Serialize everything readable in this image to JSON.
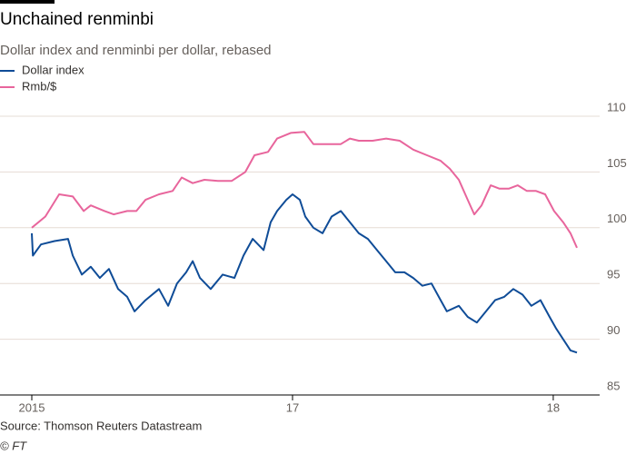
{
  "chart_data": {
    "type": "line",
    "title": "Unchained renminbi",
    "subtitle": "Dollar index and renminbi per dollar, rebased",
    "source": "Source: Thomson Reuters Datastream",
    "credit": "© FT",
    "xlim": [
      2015.878,
      2018.178
    ],
    "ylim": [
      85,
      110
    ],
    "yticks": [
      85,
      90,
      95,
      100,
      105,
      110
    ],
    "xticks": [
      {
        "value": 2016,
        "label": "2015"
      },
      {
        "value": 2017,
        "label": "17"
      },
      {
        "value": 2018,
        "label": "18"
      }
    ],
    "grid": true,
    "legend": "top-left",
    "series": [
      {
        "name": "Dollar index",
        "color": "#0f4c97",
        "x": [
          2016,
          2016.004,
          2016.035,
          2016.087,
          2016.139,
          2016.157,
          2016.192,
          2016.226,
          2016.261,
          2016.296,
          2016.331,
          2016.366,
          2016.394,
          2016.436,
          2016.488,
          2016.523,
          2016.557,
          2016.592,
          2016.617,
          2016.645,
          2016.686,
          2016.732,
          2016.777,
          2016.812,
          2016.847,
          2016.889,
          2016.916,
          2016.941,
          2016.976,
          2017.0,
          2017.028,
          2017.049,
          2017.08,
          2017.115,
          2017.15,
          2017.185,
          2017.22,
          2017.254,
          2017.289,
          2017.324,
          2017.359,
          2017.394,
          2017.429,
          2017.463,
          2017.498,
          2017.533,
          2017.568,
          2017.592,
          2017.638,
          2017.672,
          2017.707,
          2017.742,
          2017.777,
          2017.812,
          2017.847,
          2017.882,
          2017.916,
          2017.951,
          2017.986,
          2018.01,
          2018.038,
          2018.066,
          2018.091
        ],
        "values": [
          99.5,
          97.5,
          98.5,
          98.8,
          99,
          97.5,
          95.8,
          96.5,
          95.5,
          96.3,
          94.5,
          93.8,
          92.5,
          93.5,
          94.5,
          93,
          95,
          96,
          97,
          95.5,
          94.5,
          95.8,
          95.5,
          97.5,
          99,
          98,
          100.5,
          101.5,
          102.5,
          103,
          102.5,
          101,
          100,
          99.5,
          101,
          101.5,
          100.5,
          99.5,
          99,
          98,
          97,
          96,
          96,
          95.5,
          94.8,
          95,
          93.5,
          92.5,
          93,
          92,
          91.5,
          92.5,
          93.5,
          93.8,
          94.5,
          94,
          93,
          93.5,
          92,
          91,
          90,
          89,
          88.8
        ]
      },
      {
        "name": "Rmb/$",
        "color": "#e8659c",
        "x": [
          2016,
          2016.052,
          2016.105,
          2016.157,
          2016.199,
          2016.226,
          2016.279,
          2016.314,
          2016.366,
          2016.401,
          2016.436,
          2016.488,
          2016.54,
          2016.575,
          2016.617,
          2016.662,
          2016.714,
          2016.767,
          2016.819,
          2016.854,
          2016.906,
          2016.941,
          2016.993,
          2017.045,
          2017.08,
          2017.132,
          2017.185,
          2017.22,
          2017.254,
          2017.307,
          2017.359,
          2017.411,
          2017.463,
          2017.516,
          2017.568,
          2017.603,
          2017.638,
          2017.672,
          2017.697,
          2017.725,
          2017.76,
          2017.794,
          2017.829,
          2017.864,
          2017.899,
          2017.934,
          2017.969,
          2018.003,
          2018.038,
          2018.066,
          2018.091
        ],
        "values": [
          100,
          101,
          103,
          102.8,
          101.5,
          102,
          101.5,
          101.2,
          101.5,
          101.5,
          102.5,
          103,
          103.3,
          104.5,
          104,
          104.3,
          104.2,
          104.2,
          105,
          106.5,
          106.8,
          108,
          108.5,
          108.6,
          107.5,
          107.5,
          107.5,
          108,
          107.8,
          107.8,
          108,
          107.8,
          107,
          106.5,
          106,
          105.3,
          104.3,
          102.5,
          101.2,
          102,
          103.8,
          103.5,
          103.5,
          103.8,
          103.3,
          103.3,
          103,
          101.5,
          100.5,
          99.5,
          98.2
        ]
      }
    ]
  }
}
